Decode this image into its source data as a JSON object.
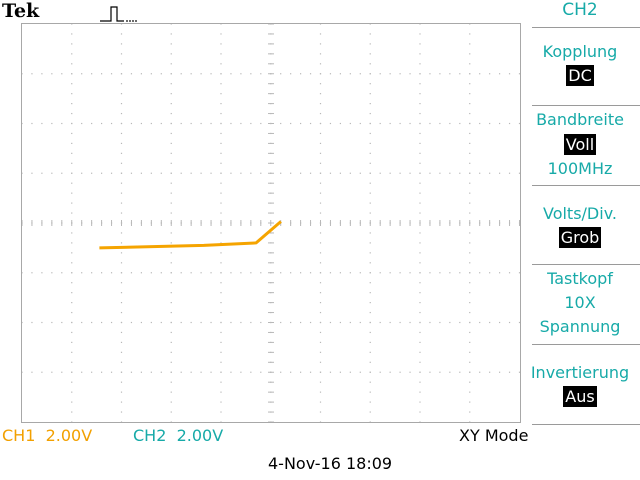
{
  "brand": "Tek",
  "trigger_icon": "pulse-trigger-icon",
  "colors": {
    "ch1": "#f2a000",
    "ch2": "#17aaa8",
    "grid": "#b8b8b8",
    "trace": "#f5a400"
  },
  "menu": {
    "title": "CH2",
    "coupling": {
      "label": "Kopplung",
      "value": "DC"
    },
    "bandwidth": {
      "label": "Bandbreite",
      "value": "Voll",
      "sub": "100MHz"
    },
    "volts_div": {
      "label": "Volts/Div.",
      "value": "Grob"
    },
    "probe": {
      "label": "Tastkopf",
      "value": "10X",
      "sub": "Spannung"
    },
    "invert": {
      "label": "Invertierung",
      "value": "Aus"
    }
  },
  "status": {
    "ch1_label": "CH1",
    "ch1_scale": "2.00V",
    "ch2_label": "CH2",
    "ch2_scale": "2.00V",
    "mode": "XY Mode"
  },
  "datetime": "4-Nov-16 18:09",
  "trace": {
    "units": "divisions from center (X=CH1, Y=CH2)",
    "points": [
      [
        -3.45,
        -0.5
      ],
      [
        -1.35,
        -0.45
      ],
      [
        -0.3,
        -0.4
      ],
      [
        0.2,
        0.03
      ]
    ]
  }
}
